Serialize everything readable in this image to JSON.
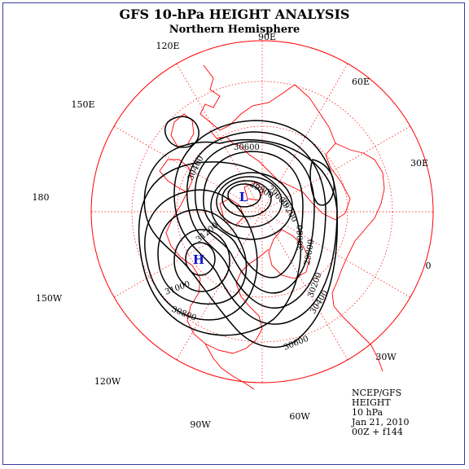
{
  "title": "GFS 10-hPa HEIGHT ANALYSIS",
  "subtitle": "Northern Hemisphere",
  "longitude_labels": [
    {
      "text": "90E"
    },
    {
      "text": "60E"
    },
    {
      "text": "30E"
    },
    {
      "text": "0"
    },
    {
      "text": "30W"
    },
    {
      "text": "60W"
    },
    {
      "text": "90W"
    },
    {
      "text": "120W"
    },
    {
      "text": "150W"
    },
    {
      "text": "180"
    },
    {
      "text": "150E"
    },
    {
      "text": "120E"
    }
  ],
  "centers": [
    {
      "symbol": "L"
    },
    {
      "symbol": "H"
    }
  ],
  "contour_labels": [
    "30600",
    "30400",
    "29800",
    "29600",
    "29200",
    "30000",
    "29800",
    "30200",
    "30400",
    "30600",
    "31200",
    "31000",
    "30800"
  ],
  "info": {
    "line1": "NCEP/GFS",
    "line2": "HEIGHT",
    "line3": "10 hPa",
    "line4": "Jan 21, 2010",
    "line5": "00Z + f144"
  },
  "colors": {
    "coastline": "#ff0000",
    "grid": "#ff0000",
    "contour": "#000000",
    "center_symbol": "#1010d0",
    "frame": "#3a3aa0"
  }
}
